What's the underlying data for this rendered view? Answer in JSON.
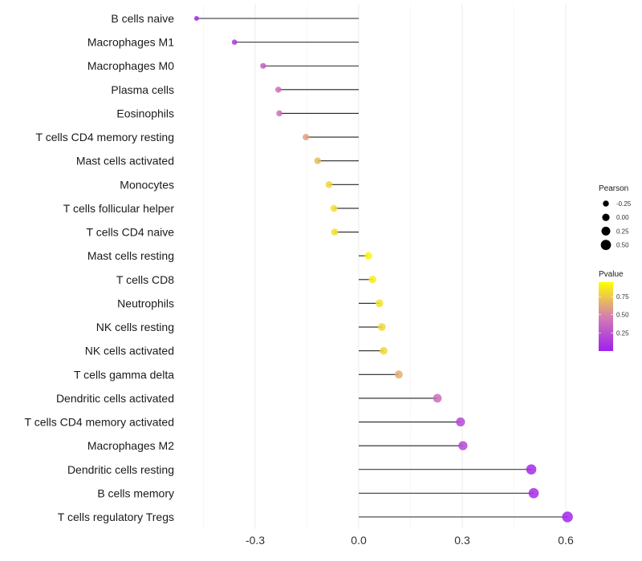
{
  "chart_data": {
    "type": "lollipop",
    "title": "",
    "xlabel": "",
    "ylabel": "",
    "xlim": [
      -0.5,
      0.63
    ],
    "x_ticks": [
      -0.3,
      0.0,
      0.3,
      0.6
    ],
    "x_tick_labels": [
      "-0.3",
      "0.0",
      "0.3",
      "0.6"
    ],
    "grid": true,
    "categories": [
      "B cells naive",
      "Macrophages M1",
      "Macrophages M0",
      "Plasma cells",
      "Eosinophils",
      "T cells CD4 memory resting",
      "Mast cells activated",
      "Monocytes",
      "T cells follicular helper",
      "T cells CD4 naive",
      "Mast cells resting",
      "T cells CD8",
      "Neutrophils",
      "NK cells resting",
      "NK cells activated",
      "T cells gamma delta",
      "Dendritic cells activated",
      "T cells CD4 memory activated",
      "Macrophages M2",
      "Dendritic cells resting",
      "B cells memory",
      "T cells regulatory  Tregs"
    ],
    "pearson": [
      -0.47,
      -0.36,
      -0.277,
      -0.233,
      -0.23,
      -0.153,
      -0.119,
      -0.086,
      -0.072,
      -0.07,
      0.028,
      0.04,
      0.06,
      0.067,
      0.072,
      0.116,
      0.228,
      0.295,
      0.302,
      0.5,
      0.507,
      0.605
    ],
    "pvalue": [
      0.03,
      0.12,
      0.3,
      0.4,
      0.4,
      0.6,
      0.7,
      0.8,
      0.83,
      0.83,
      0.92,
      0.88,
      0.83,
      0.8,
      0.8,
      0.65,
      0.38,
      0.2,
      0.2,
      0.05,
      0.06,
      0.03
    ],
    "legend_size": {
      "title": "Pearson",
      "values": [
        -0.25,
        0.0,
        0.25,
        0.5
      ],
      "labels": [
        "-0.25",
        "0.00",
        "0.25",
        "0.50"
      ],
      "placement": "right"
    },
    "legend_color": {
      "title": "Pvalue",
      "ticks": [
        0.25,
        0.5,
        0.75
      ],
      "labels": [
        "0.25",
        "0.50",
        "0.75"
      ],
      "range": [
        0.0,
        0.95
      ],
      "low_color": "#A020F0",
      "mid_color": "#D47FB0",
      "high_color": "#FFFF00",
      "placement": "right"
    }
  }
}
